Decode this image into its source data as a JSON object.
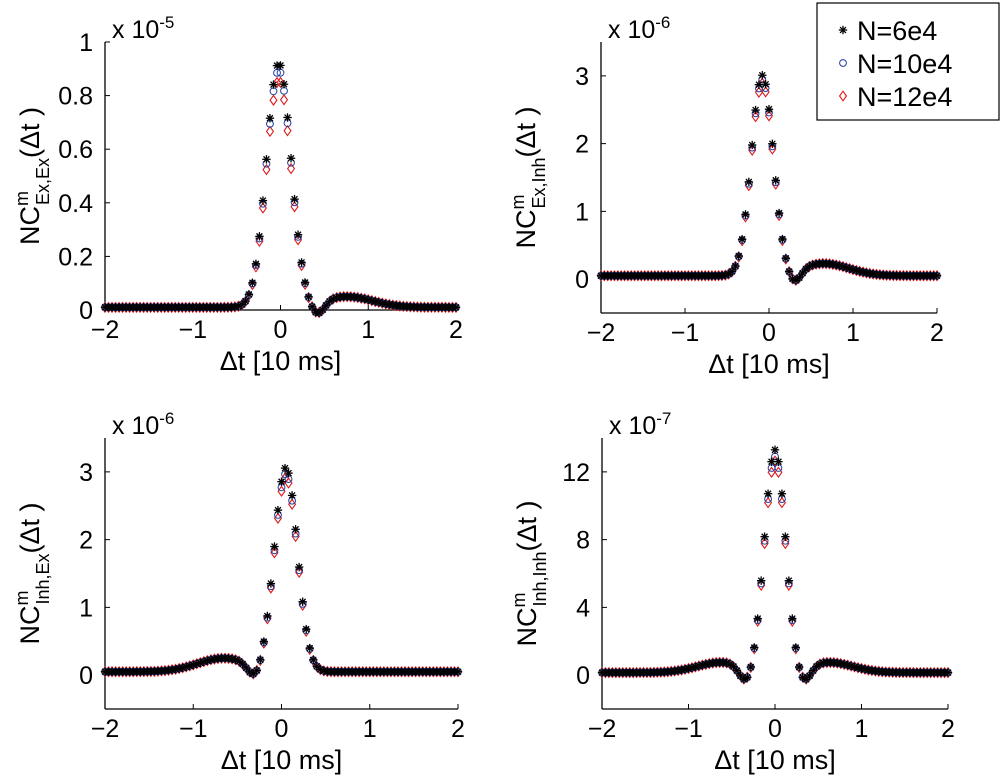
{
  "chart_data": [
    {
      "type": "scatter",
      "panel": "top-left",
      "ylabel": {
        "main": "NC",
        "sup": "m",
        "sub": "Ex,Ex",
        "tail": "(Δt )"
      },
      "xlabel": "Δt [10 ms]",
      "multiplier": {
        "base": "x 10",
        "exp": "-5"
      },
      "xlim": [
        -2,
        2
      ],
      "ylim": [
        0,
        1
      ],
      "xticks": [
        -2,
        -1,
        0,
        1,
        2
      ],
      "xtick_labels": [
        "−2",
        "−1",
        "0",
        "1",
        "2"
      ],
      "yticks": [
        0,
        0.2,
        0.4,
        0.6,
        0.8,
        1
      ],
      "ytick_labels": [
        "0",
        "0.2",
        "0.4",
        "0.6",
        "0.8",
        "1"
      ],
      "curve": {
        "peak_x": -0.02,
        "peak": 0.92,
        "width": 0.14,
        "dip_x": 0.42,
        "dip": -0.05,
        "dip_w": 0.08,
        "hump_x": 0.75,
        "hump": 0.04,
        "hump_w": 0.3,
        "base": 0.01
      },
      "series_scale": [
        1.0,
        0.97,
        0.93
      ]
    },
    {
      "type": "scatter",
      "panel": "top-right",
      "ylabel": {
        "main": "NC",
        "sup": "m",
        "sub": "Ex,Inh",
        "tail": "(Δt )"
      },
      "xlabel": "Δt [10 ms]",
      "multiplier": {
        "base": "x 10",
        "exp": "-6"
      },
      "xlim": [
        -2,
        2
      ],
      "ylim": [
        -0.5,
        3.5
      ],
      "xticks": [
        -2,
        -1,
        0,
        1,
        2
      ],
      "xtick_labels": [
        "−2",
        "−1",
        "0",
        "1",
        "2"
      ],
      "yticks": [
        0,
        1,
        2,
        3
      ],
      "ytick_labels": [
        "0",
        "1",
        "2",
        "3"
      ],
      "curve": {
        "peak_x": -0.08,
        "peak": 3.0,
        "width": 0.13,
        "dip_x": 0.3,
        "dip": -0.2,
        "dip_w": 0.08,
        "hump_x": 0.65,
        "hump": 0.18,
        "hump_w": 0.3,
        "base": 0.05
      },
      "series_scale": [
        1.0,
        0.98,
        0.96
      ]
    },
    {
      "type": "scatter",
      "panel": "bottom-left",
      "ylabel": {
        "main": "NC",
        "sup": "m",
        "sub": "Inh,Ex",
        "tail": "(Δt )"
      },
      "xlabel": "Δt [10 ms]",
      "multiplier": {
        "base": "x 10",
        "exp": "-6"
      },
      "xlim": [
        -2,
        2
      ],
      "ylim": [
        -0.5,
        3.5
      ],
      "xticks": [
        -2,
        -1,
        0,
        1,
        2
      ],
      "xtick_labels": [
        "−2",
        "−1",
        "0",
        "1",
        "2"
      ],
      "yticks": [
        0,
        1,
        2,
        3
      ],
      "ytick_labels": [
        "0",
        "1",
        "2",
        "3"
      ],
      "curve": {
        "peak_x": 0.05,
        "peak": 3.05,
        "width": 0.13,
        "dip_x": -0.3,
        "dip": -0.2,
        "dip_w": 0.08,
        "hump_x": -0.65,
        "hump": 0.2,
        "hump_w": 0.3,
        "base": 0.05
      },
      "series_scale": [
        1.0,
        0.97,
        0.95
      ]
    },
    {
      "type": "scatter",
      "panel": "bottom-right",
      "ylabel": {
        "main": "NC",
        "sup": "m",
        "sub": "Inh,Inh",
        "tail": "(Δt )"
      },
      "xlabel": "Δt [10 ms]",
      "multiplier": {
        "base": "x 10",
        "exp": "-7"
      },
      "xlim": [
        -2,
        2
      ],
      "ylim": [
        -2,
        14
      ],
      "xticks": [
        -2,
        -1,
        0,
        1,
        2
      ],
      "xtick_labels": [
        "−2",
        "−1",
        "0",
        "1",
        "2"
      ],
      "yticks": [
        0,
        4,
        8,
        12
      ],
      "ytick_labels": [
        "0",
        "4",
        "8",
        "12"
      ],
      "curve": {
        "peak_x": 0.0,
        "peak": 13.2,
        "width": 0.12,
        "dip_x": -0.33,
        "dip": -1.0,
        "dip_w": 0.08,
        "hump_x": -0.62,
        "hump": 0.6,
        "hump_w": 0.28,
        "base": 0.15,
        "symmetric": true
      },
      "series_scale": [
        1.0,
        0.97,
        0.95
      ]
    }
  ],
  "legend": {
    "entries": [
      {
        "label": "N=6e4",
        "marker": "star",
        "color": "#000000"
      },
      {
        "label": "N=10e4",
        "marker": "circle",
        "color": "#1f3fa0"
      },
      {
        "label": "N=12e4",
        "marker": "diamond",
        "color": "#e01818"
      }
    ],
    "placement": "top-right"
  }
}
